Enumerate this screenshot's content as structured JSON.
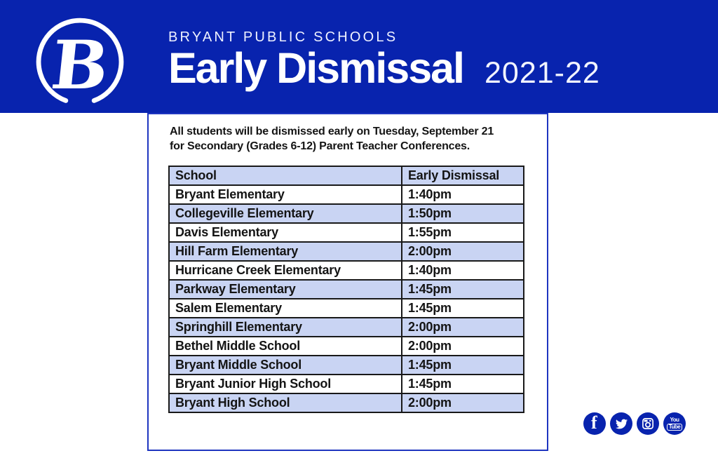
{
  "header": {
    "school_name": "BRYANT PUBLIC SCHOOLS",
    "title": "Early Dismissal",
    "year": "2021-22",
    "logo_letter": "B",
    "bg_color": "#0823ae"
  },
  "announcement": {
    "line1": "All students will be dismissed early on Tuesday, September 21",
    "line2": "for Secondary (Grades 6-12) Parent Teacher Conferences."
  },
  "table": {
    "columns": [
      "School",
      "Early Dismissal"
    ],
    "rows": [
      [
        "Bryant Elementary",
        "1:40pm"
      ],
      [
        "Collegeville Elementary",
        "1:50pm"
      ],
      [
        "Davis Elementary",
        "1:55pm"
      ],
      [
        "Hill Farm Elementary",
        "2:00pm"
      ],
      [
        "Hurricane Creek Elementary",
        "1:40pm"
      ],
      [
        "Parkway Elementary",
        "1:45pm"
      ],
      [
        "Salem Elementary",
        "1:45pm"
      ],
      [
        "Springhill Elementary",
        "2:00pm"
      ],
      [
        "Bethel Middle School",
        "2:00pm"
      ],
      [
        "Bryant Middle School",
        "1:45pm"
      ],
      [
        "Bryant Junior High School",
        "1:45pm"
      ],
      [
        "Bryant High School",
        "2:00pm"
      ]
    ],
    "alt_row_color": "#c9d4f3"
  },
  "social": {
    "facebook_label": "f",
    "youtube_top": "You",
    "youtube_bottom": "Tube"
  },
  "colors": {
    "banner_blue": "#0823ae",
    "box_border_blue": "#1e35c0",
    "table_border": "#191919",
    "row_alt_blue": "#c9d4f3"
  }
}
